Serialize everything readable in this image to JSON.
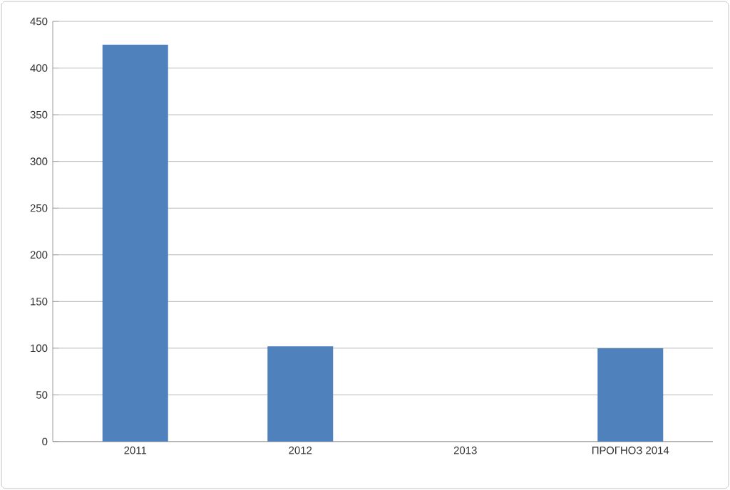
{
  "chart_data": {
    "type": "bar",
    "categories": [
      "2011",
      "2012",
      "2013",
      "ПРОГНОЗ 2014"
    ],
    "values": [
      425,
      102,
      null,
      100
    ],
    "color": "#4f81bd",
    "ylim": [
      0,
      450
    ],
    "yticks": [
      0,
      50,
      100,
      150,
      200,
      250,
      300,
      350,
      400,
      450
    ],
    "grid": "y"
  }
}
